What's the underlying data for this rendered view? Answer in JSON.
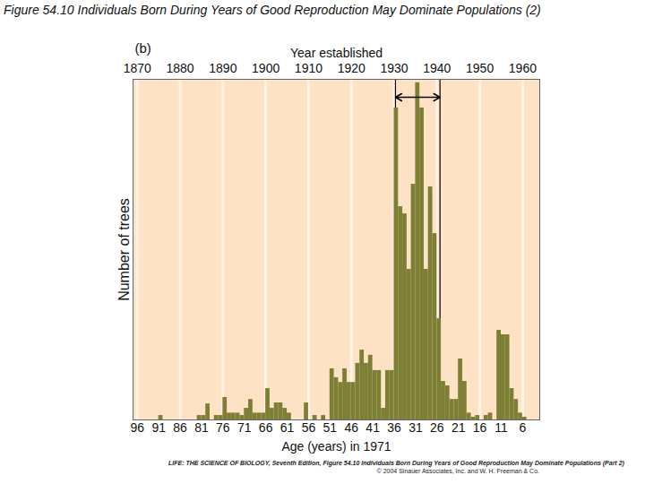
{
  "chart_data": {
    "type": "histogram",
    "title": "Figure 54.10 Individuals Born During Years of Good Reproduction May Dominate Populations (2)",
    "panel_label": "(b)",
    "x_label": "Age (years) in 1971",
    "x2_label": "Year established",
    "y_label": "Number of trees",
    "bins": [
      97,
      96,
      95,
      94,
      93,
      92,
      91,
      90,
      89,
      88,
      87,
      86,
      85,
      84,
      83,
      82,
      81,
      80,
      79,
      78,
      77,
      76,
      75,
      74,
      73,
      72,
      71,
      70,
      69,
      68,
      67,
      66,
      65,
      64,
      63,
      62,
      61,
      60,
      59,
      58,
      57,
      56,
      55,
      54,
      53,
      52,
      51,
      50,
      49,
      48,
      47,
      46,
      45,
      44,
      43,
      42,
      41,
      40,
      39,
      38,
      37,
      36,
      35,
      34,
      33,
      32,
      31,
      30,
      29,
      28,
      27,
      26,
      25,
      24,
      23,
      22,
      21,
      20,
      19,
      18,
      17,
      16,
      15,
      14,
      13,
      12,
      11,
      10,
      9,
      8,
      7,
      6,
      5,
      4,
      3,
      2
    ],
    "counts": [
      0,
      0,
      0,
      0,
      0,
      0,
      1.3,
      0,
      0,
      0,
      0,
      0,
      0,
      0,
      0,
      1.3,
      1.3,
      4.7,
      0,
      1.3,
      1.3,
      6.6,
      2,
      2,
      2,
      1.3,
      3.4,
      6,
      2,
      2,
      2,
      9.2,
      3.4,
      5,
      5,
      3.4,
      2,
      0,
      0,
      0,
      5,
      0,
      1.3,
      0,
      1.3,
      0,
      15,
      12.4,
      11,
      15,
      11,
      11,
      16.6,
      20.5,
      16.6,
      19,
      14.5,
      14.5,
      3.4,
      14.5,
      14.5,
      91.6,
      62.6,
      60.5,
      44.2,
      69.2,
      99,
      91.6,
      44.2,
      68.4,
      54.7,
      29.7,
      11.3,
      10,
      6,
      6,
      17.9,
      11.3,
      2,
      0.8,
      1.3,
      0,
      1.3,
      2,
      0,
      26.3,
      25,
      25,
      9.2,
      6,
      2,
      0.8,
      0,
      0,
      0
    ],
    "color": "#7d7f34",
    "xlim": [
      97,
      2
    ],
    "xticks": [
      96,
      91,
      86,
      81,
      76,
      71,
      66,
      61,
      56,
      51,
      46,
      41,
      36,
      31,
      26,
      21,
      16,
      11,
      6
    ],
    "x2lim": [
      1869,
      1964
    ],
    "x2ticks": [
      1870,
      1880,
      1890,
      1900,
      1910,
      1920,
      1930,
      1940,
      1950,
      1960
    ],
    "ylim": [
      0,
      100
    ],
    "yticks": [],
    "grid": true,
    "tick_labels": "x",
    "highlight_range": [
      35.7,
      25.3
    ],
    "caption": "LIFE: THE SCIENCE OF BIOLOGY, Seventh Edition, Figure 54.10 Individuals Born During Years of Good Reproduction May Dominate Populations (Part 2)",
    "credit": "© 2004 Sinauer Associates, Inc. and W. H. Freeman & Co."
  }
}
